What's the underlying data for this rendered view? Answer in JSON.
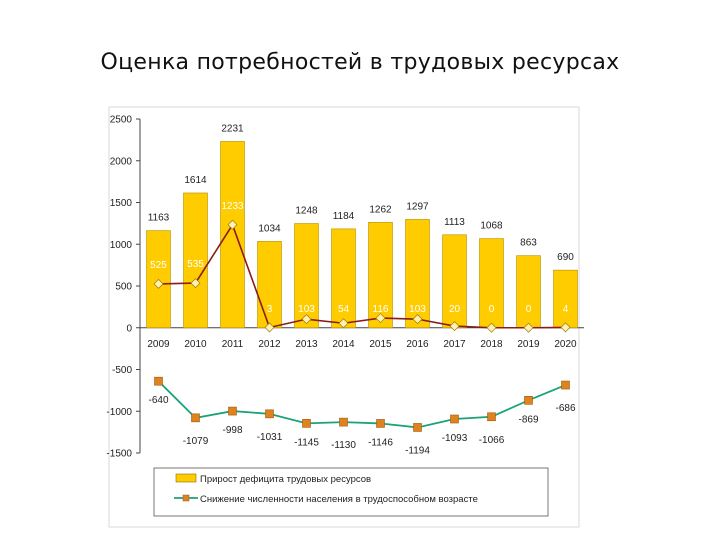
{
  "title": "Оценка потребностей в трудовых ресурсах",
  "chart_data": {
    "type": "bar",
    "title": "",
    "xlabel": "",
    "ylabel": "",
    "ylim": [
      -1500,
      2500
    ],
    "yticks": [
      2500,
      2000,
      1500,
      1000,
      500,
      0,
      -500,
      -1000,
      -1500
    ],
    "grid": false,
    "legend_position": "bottom",
    "categories": [
      "2009",
      "2010",
      "2011",
      "2012",
      "2013",
      "2014",
      "2015",
      "2016",
      "2017",
      "2018",
      "2019",
      "2020"
    ],
    "series": [
      {
        "name": "Прирост дефицита трудовых ресурсов",
        "type": "bar",
        "color": "#FFCC00",
        "values": [
          1163,
          1614,
          2231,
          1034,
          1248,
          1184,
          1262,
          1297,
          1113,
          1068,
          863,
          690
        ],
        "labels": [
          "1163",
          "1614",
          "2231",
          "1034",
          "1248",
          "1184",
          "1262",
          "1297",
          "1113",
          "1068",
          "863",
          "690"
        ]
      },
      {
        "name": "",
        "type": "line",
        "color": "#8B1A1A",
        "marker_color": "#FFF2B0",
        "values": [
          525,
          535,
          1233,
          3,
          103,
          54,
          116,
          103,
          20,
          0,
          0,
          4
        ],
        "labels": [
          "525",
          "535",
          "1233",
          "3",
          "103",
          "54",
          "116",
          "103",
          "20",
          "0",
          "0",
          "4"
        ]
      },
      {
        "name": "Снижение численности населения в трудоспособном возрасте",
        "type": "line",
        "color": "#1AA37A",
        "marker_color": "#E0821E",
        "values": [
          -640,
          -1079,
          -998,
          -1031,
          -1145,
          -1130,
          -1146,
          -1194,
          -1093,
          -1066,
          -869,
          -686
        ],
        "labels": [
          "-640",
          "-1079",
          "-998",
          "-1031",
          "-1145",
          "-1130",
          "-1146",
          "-1194",
          "-1093",
          "-1066",
          "-869",
          "-686"
        ]
      }
    ]
  }
}
